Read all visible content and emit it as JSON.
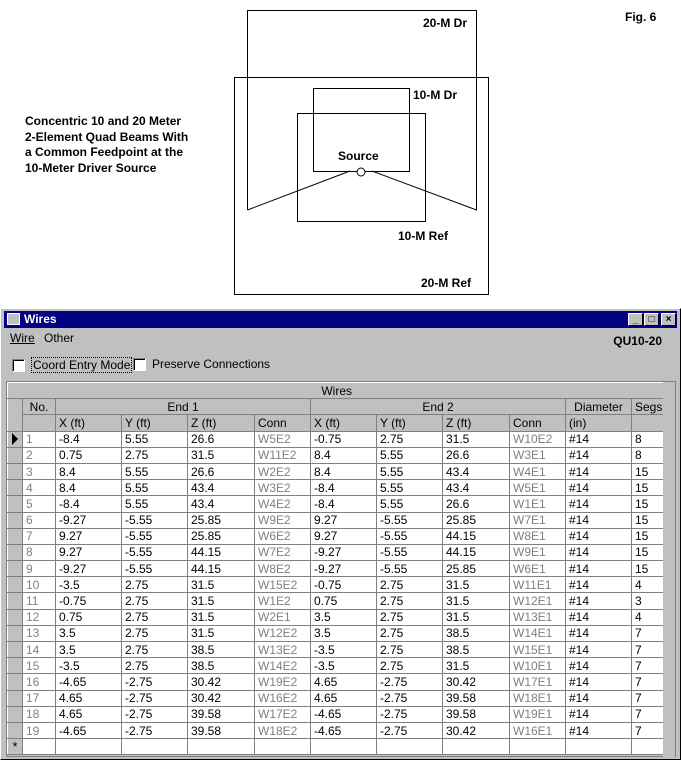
{
  "figure": {
    "fig_label": "Fig. 6",
    "caption": "Concentric 10 and 20 Meter\n2-Element Quad Beams With\na Common Feedpoint at the\n10-Meter Driver Source",
    "labels": {
      "dr20": "20-M Dr",
      "dr10": "10-M Dr",
      "source": "Source",
      "ref10": "10-M Ref",
      "ref20": "20-M Ref"
    }
  },
  "window": {
    "title": "Wires",
    "menu": [
      {
        "label": "Wire"
      },
      {
        "label": "Other"
      }
    ],
    "model_name": "QU10-20",
    "checkboxes": [
      {
        "label": "Coord Entry Mode",
        "checked": false
      },
      {
        "label": "Preserve Connections",
        "checked": false
      }
    ],
    "buttons": {
      "minimize": "_",
      "maximize": "□",
      "close": "×"
    }
  },
  "table": {
    "caption": "Wires",
    "groups": {
      "no": "No.",
      "end1": "End 1",
      "end2": "End 2",
      "diameter": "Diameter",
      "segs": "Segs"
    },
    "subheaders": [
      "X (ft)",
      "Y (ft)",
      "Z (ft)",
      "Conn",
      "X (ft)",
      "Y (ft)",
      "Z (ft)",
      "Conn",
      "(in)",
      ""
    ],
    "current_row": 1,
    "new_row_marker": "*",
    "rows": [
      [
        "1",
        "-8.4",
        "5.55",
        "26.6",
        "W5E2",
        "-0.75",
        "2.75",
        "31.5",
        "W10E2",
        "#14",
        "8"
      ],
      [
        "2",
        "0.75",
        "2.75",
        "31.5",
        "W11E2",
        "8.4",
        "5.55",
        "26.6",
        "W3E1",
        "#14",
        "8"
      ],
      [
        "3",
        "8.4",
        "5.55",
        "26.6",
        "W2E2",
        "8.4",
        "5.55",
        "43.4",
        "W4E1",
        "#14",
        "15"
      ],
      [
        "4",
        "8.4",
        "5.55",
        "43.4",
        "W3E2",
        "-8.4",
        "5.55",
        "43.4",
        "W5E1",
        "#14",
        "15"
      ],
      [
        "5",
        "-8.4",
        "5.55",
        "43.4",
        "W4E2",
        "-8.4",
        "5.55",
        "26.6",
        "W1E1",
        "#14",
        "15"
      ],
      [
        "6",
        "-9.27",
        "-5.55",
        "25.85",
        "W9E2",
        "9.27",
        "-5.55",
        "25.85",
        "W7E1",
        "#14",
        "15"
      ],
      [
        "7",
        "9.27",
        "-5.55",
        "25.85",
        "W6E2",
        "9.27",
        "-5.55",
        "44.15",
        "W8E1",
        "#14",
        "15"
      ],
      [
        "8",
        "9.27",
        "-5.55",
        "44.15",
        "W7E2",
        "-9.27",
        "-5.55",
        "44.15",
        "W9E1",
        "#14",
        "15"
      ],
      [
        "9",
        "-9.27",
        "-5.55",
        "44.15",
        "W8E2",
        "-9.27",
        "-5.55",
        "25.85",
        "W6E1",
        "#14",
        "15"
      ],
      [
        "10",
        "-3.5",
        "2.75",
        "31.5",
        "W15E2",
        "-0.75",
        "2.75",
        "31.5",
        "W11E1",
        "#14",
        "4"
      ],
      [
        "11",
        "-0.75",
        "2.75",
        "31.5",
        "W1E2",
        "0.75",
        "2.75",
        "31.5",
        "W12E1",
        "#14",
        "3"
      ],
      [
        "12",
        "0.75",
        "2.75",
        "31.5",
        "W2E1",
        "3.5",
        "2.75",
        "31.5",
        "W13E1",
        "#14",
        "4"
      ],
      [
        "13",
        "3.5",
        "2.75",
        "31.5",
        "W12E2",
        "3.5",
        "2.75",
        "38.5",
        "W14E1",
        "#14",
        "7"
      ],
      [
        "14",
        "3.5",
        "2.75",
        "38.5",
        "W13E2",
        "-3.5",
        "2.75",
        "38.5",
        "W15E1",
        "#14",
        "7"
      ],
      [
        "15",
        "-3.5",
        "2.75",
        "38.5",
        "W14E2",
        "-3.5",
        "2.75",
        "31.5",
        "W10E1",
        "#14",
        "7"
      ],
      [
        "16",
        "-4.65",
        "-2.75",
        "30.42",
        "W19E2",
        "4.65",
        "-2.75",
        "30.42",
        "W17E1",
        "#14",
        "7"
      ],
      [
        "17",
        "4.65",
        "-2.75",
        "30.42",
        "W16E2",
        "4.65",
        "-2.75",
        "39.58",
        "W18E1",
        "#14",
        "7"
      ],
      [
        "18",
        "4.65",
        "-2.75",
        "39.58",
        "W17E2",
        "-4.65",
        "-2.75",
        "39.58",
        "W19E1",
        "#14",
        "7"
      ],
      [
        "19",
        "-4.65",
        "-2.75",
        "39.58",
        "W18E2",
        "-4.65",
        "-2.75",
        "30.42",
        "W16E1",
        "#14",
        "7"
      ]
    ]
  }
}
